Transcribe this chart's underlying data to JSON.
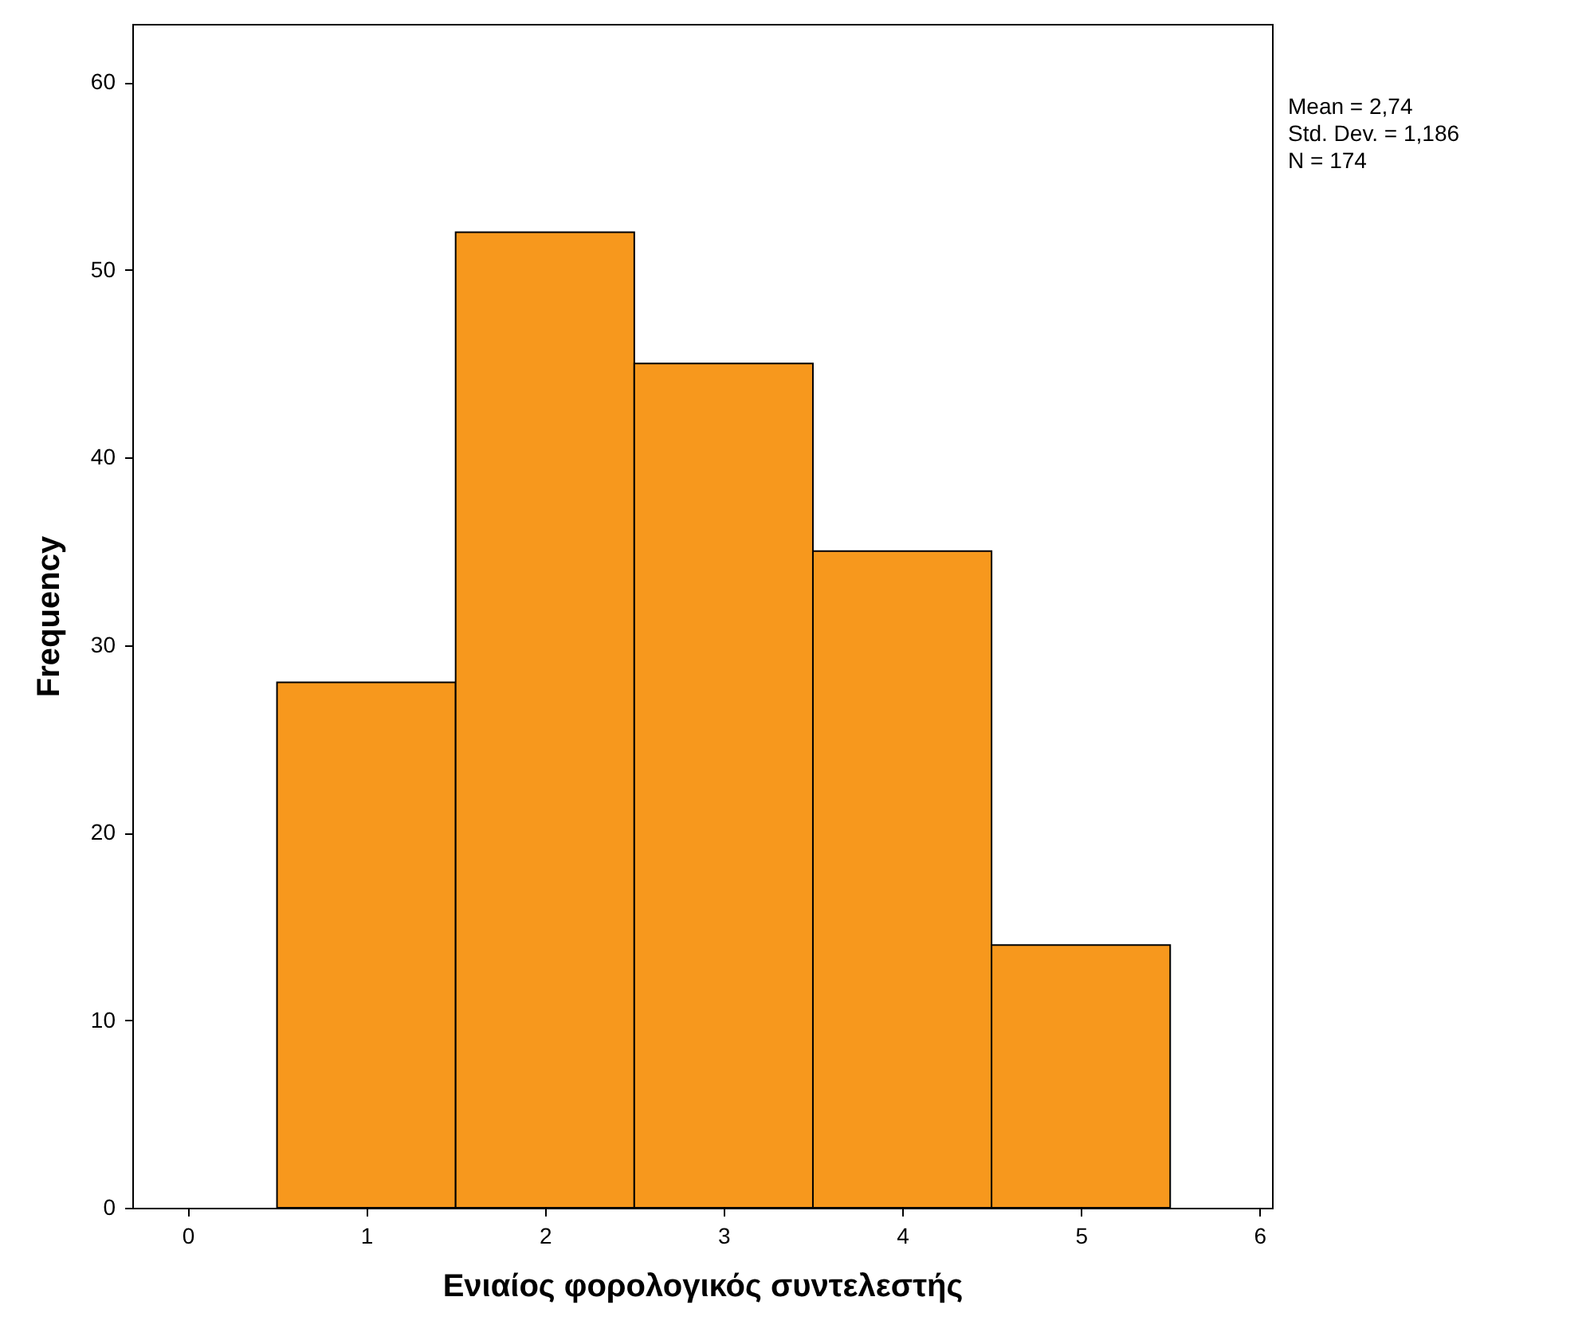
{
  "chart_data": {
    "type": "histogram",
    "bins": [
      0.5,
      1.5,
      2.5,
      3.5,
      4.5,
      5.5
    ],
    "values": [
      28,
      52,
      45,
      35,
      14
    ],
    "color": "#f7981d",
    "xlim": [
      -0.31,
      6.07
    ],
    "xticks": [
      0,
      1,
      2,
      3,
      4,
      5,
      6
    ],
    "ylim": [
      0,
      63.1
    ],
    "yticks": [
      0,
      10,
      20,
      30,
      40,
      50,
      60
    ],
    "xlabel": "Ενιαίος φορολογικός συντελεστής",
    "ylabel": "Frequency",
    "annotations": [
      "Mean = 2,74",
      "Std. Dev. = 1,186",
      "N = 174"
    ],
    "grid": false
  }
}
